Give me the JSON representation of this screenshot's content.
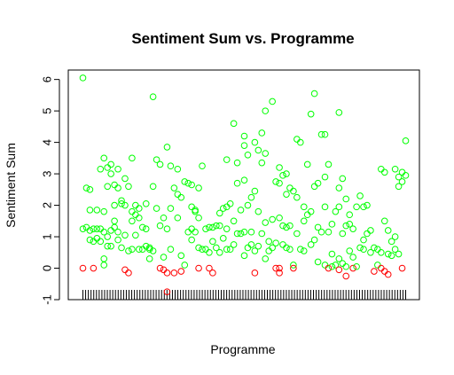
{
  "chart_data": {
    "type": "scatter",
    "title": "Sentiment Sum vs. Programme",
    "xlabel": "Programme",
    "ylabel": "Sentiment Sum",
    "ylim": [
      -1,
      6.3
    ],
    "yticks": [
      -1,
      0,
      1,
      2,
      3,
      4,
      5,
      6
    ],
    "x_tick_labels_visible": false,
    "grid": false,
    "legend": "none",
    "n_programmes": 120,
    "colors": {
      "positive": "#00ff00",
      "nonpositive": "#ff0000",
      "axis": "#000000"
    },
    "series": [
      {
        "color_rule": "green if y > 0, red if y <= 0",
        "points": [
          {
            "x": 1,
            "y": 6.05
          },
          {
            "x": 1,
            "y": 1.25
          },
          {
            "x": 1,
            "y": 0.0
          },
          {
            "x": 2,
            "y": 2.55
          },
          {
            "x": 2,
            "y": 1.3
          },
          {
            "x": 3,
            "y": 2.5
          },
          {
            "x": 3,
            "y": 1.85
          },
          {
            "x": 3,
            "y": 0.9
          },
          {
            "x": 3,
            "y": 1.2
          },
          {
            "x": 4,
            "y": 1.25
          },
          {
            "x": 4,
            "y": 0.85
          },
          {
            "x": 4,
            "y": 0.0
          },
          {
            "x": 5,
            "y": 1.85
          },
          {
            "x": 5,
            "y": 1.25
          },
          {
            "x": 5,
            "y": 0.95
          },
          {
            "x": 6,
            "y": 3.15
          },
          {
            "x": 6,
            "y": 1.25
          },
          {
            "x": 6,
            "y": 0.85
          },
          {
            "x": 7,
            "y": 3.5
          },
          {
            "x": 7,
            "y": 1.8
          },
          {
            "x": 7,
            "y": 1.15
          },
          {
            "x": 7,
            "y": 0.3
          },
          {
            "x": 7,
            "y": 0.1
          },
          {
            "x": 8,
            "y": 3.2
          },
          {
            "x": 8,
            "y": 2.6
          },
          {
            "x": 8,
            "y": 1.0
          },
          {
            "x": 8,
            "y": 0.7
          },
          {
            "x": 9,
            "y": 3.3
          },
          {
            "x": 9,
            "y": 3.0
          },
          {
            "x": 9,
            "y": 1.2
          },
          {
            "x": 9,
            "y": 0.7
          },
          {
            "x": 10,
            "y": 2.65
          },
          {
            "x": 10,
            "y": 2.0
          },
          {
            "x": 10,
            "y": 1.5
          },
          {
            "x": 10,
            "y": 1.3
          },
          {
            "x": 11,
            "y": 3.15
          },
          {
            "x": 11,
            "y": 2.55
          },
          {
            "x": 11,
            "y": 1.15
          },
          {
            "x": 11,
            "y": 0.9
          },
          {
            "x": 12,
            "y": 2.15
          },
          {
            "x": 12,
            "y": 2.05
          },
          {
            "x": 12,
            "y": 0.65
          },
          {
            "x": 13,
            "y": 2.85
          },
          {
            "x": 13,
            "y": 2.0
          },
          {
            "x": 13,
            "y": 1.05
          },
          {
            "x": 13,
            "y": -0.05
          },
          {
            "x": 14,
            "y": 2.6
          },
          {
            "x": 14,
            "y": 0.55
          },
          {
            "x": 14,
            "y": -0.15
          },
          {
            "x": 15,
            "y": 3.5
          },
          {
            "x": 15,
            "y": 1.8
          },
          {
            "x": 15,
            "y": 1.5
          },
          {
            "x": 15,
            "y": 0.6
          },
          {
            "x": 16,
            "y": 2.0
          },
          {
            "x": 16,
            "y": 1.7
          },
          {
            "x": 16,
            "y": 1.05
          },
          {
            "x": 17,
            "y": 1.9
          },
          {
            "x": 17,
            "y": 1.6
          },
          {
            "x": 17,
            "y": 0.6
          },
          {
            "x": 18,
            "y": 1.3
          },
          {
            "x": 18,
            "y": 0.6
          },
          {
            "x": 19,
            "y": 2.05
          },
          {
            "x": 19,
            "y": 1.25
          },
          {
            "x": 19,
            "y": 0.7
          },
          {
            "x": 20,
            "y": 0.65
          },
          {
            "x": 20,
            "y": 0.6
          },
          {
            "x": 20,
            "y": 0.3
          },
          {
            "x": 21,
            "y": 5.45
          },
          {
            "x": 21,
            "y": 2.6
          },
          {
            "x": 21,
            "y": 0.55
          },
          {
            "x": 22,
            "y": 3.45
          },
          {
            "x": 22,
            "y": 1.9
          },
          {
            "x": 23,
            "y": 3.3
          },
          {
            "x": 23,
            "y": 1.35
          },
          {
            "x": 23,
            "y": 0.0
          },
          {
            "x": 24,
            "y": 1.6
          },
          {
            "x": 24,
            "y": 0.35
          },
          {
            "x": 24,
            "y": -0.05
          },
          {
            "x": 25,
            "y": 3.85
          },
          {
            "x": 25,
            "y": 1.25
          },
          {
            "x": 25,
            "y": -0.15
          },
          {
            "x": 25,
            "y": -0.75
          },
          {
            "x": 26,
            "y": 3.25
          },
          {
            "x": 26,
            "y": 1.9
          },
          {
            "x": 26,
            "y": 0.6
          },
          {
            "x": 27,
            "y": 2.55
          },
          {
            "x": 27,
            "y": -0.15
          },
          {
            "x": 28,
            "y": 3.15
          },
          {
            "x": 28,
            "y": 2.35
          },
          {
            "x": 28,
            "y": 1.6
          },
          {
            "x": 29,
            "y": 2.25
          },
          {
            "x": 29,
            "y": 0.4
          },
          {
            "x": 29,
            "y": -0.1
          },
          {
            "x": 30,
            "y": 2.75
          },
          {
            "x": 30,
            "y": 0.1
          },
          {
            "x": 31,
            "y": 2.7
          },
          {
            "x": 31,
            "y": 1.15
          },
          {
            "x": 32,
            "y": 2.65
          },
          {
            "x": 32,
            "y": 1.95
          },
          {
            "x": 32,
            "y": 1.25
          },
          {
            "x": 32,
            "y": 0.9
          },
          {
            "x": 33,
            "y": 1.85
          },
          {
            "x": 33,
            "y": 1.8
          },
          {
            "x": 33,
            "y": 1.15
          },
          {
            "x": 34,
            "y": 2.55
          },
          {
            "x": 34,
            "y": 1.6
          },
          {
            "x": 34,
            "y": 0.65
          },
          {
            "x": 34,
            "y": 0.0
          },
          {
            "x": 35,
            "y": 3.25
          },
          {
            "x": 35,
            "y": 0.6
          },
          {
            "x": 36,
            "y": 1.25
          },
          {
            "x": 36,
            "y": 0.6
          },
          {
            "x": 37,
            "y": 1.3
          },
          {
            "x": 37,
            "y": 0.5
          },
          {
            "x": 37,
            "y": 0.0
          },
          {
            "x": 38,
            "y": 1.3
          },
          {
            "x": 38,
            "y": 0.85
          },
          {
            "x": 38,
            "y": -0.15
          },
          {
            "x": 39,
            "y": 1.35
          },
          {
            "x": 39,
            "y": 0.65
          },
          {
            "x": 40,
            "y": 1.75
          },
          {
            "x": 40,
            "y": 1.35
          },
          {
            "x": 40,
            "y": 0.5
          },
          {
            "x": 41,
            "y": 1.9
          },
          {
            "x": 41,
            "y": 0.95
          },
          {
            "x": 42,
            "y": 3.45
          },
          {
            "x": 42,
            "y": 1.95
          },
          {
            "x": 42,
            "y": 1.25
          },
          {
            "x": 42,
            "y": 0.6
          },
          {
            "x": 43,
            "y": 2.05
          },
          {
            "x": 43,
            "y": 0.6
          },
          {
            "x": 44,
            "y": 4.6
          },
          {
            "x": 44,
            "y": 1.5
          },
          {
            "x": 44,
            "y": 0.75
          },
          {
            "x": 45,
            "y": 3.35
          },
          {
            "x": 45,
            "y": 2.7
          },
          {
            "x": 45,
            "y": 1.1
          },
          {
            "x": 46,
            "y": 1.85
          },
          {
            "x": 46,
            "y": 1.1
          },
          {
            "x": 47,
            "y": 4.2
          },
          {
            "x": 47,
            "y": 3.9
          },
          {
            "x": 47,
            "y": 2.8
          },
          {
            "x": 47,
            "y": 1.15
          },
          {
            "x": 47,
            "y": 0.4
          },
          {
            "x": 48,
            "y": 3.6
          },
          {
            "x": 48,
            "y": 2.0
          },
          {
            "x": 48,
            "y": 0.65
          },
          {
            "x": 49,
            "y": 2.25
          },
          {
            "x": 49,
            "y": 1.15
          },
          {
            "x": 49,
            "y": 0.75
          },
          {
            "x": 50,
            "y": 4.0
          },
          {
            "x": 50,
            "y": 2.45
          },
          {
            "x": 50,
            "y": 0.55
          },
          {
            "x": 50,
            "y": -0.15
          },
          {
            "x": 51,
            "y": 3.75
          },
          {
            "x": 51,
            "y": 1.8
          },
          {
            "x": 51,
            "y": 0.7
          },
          {
            "x": 52,
            "y": 4.3
          },
          {
            "x": 52,
            "y": 3.35
          },
          {
            "x": 52,
            "y": 1.1
          },
          {
            "x": 53,
            "y": 5.0
          },
          {
            "x": 53,
            "y": 3.65
          },
          {
            "x": 53,
            "y": 1.45
          },
          {
            "x": 53,
            "y": 0.3
          },
          {
            "x": 54,
            "y": 0.85
          },
          {
            "x": 54,
            "y": 0.55
          },
          {
            "x": 55,
            "y": 5.3
          },
          {
            "x": 55,
            "y": 1.55
          },
          {
            "x": 55,
            "y": 0.65
          },
          {
            "x": 56,
            "y": 2.75
          },
          {
            "x": 56,
            "y": 0.8
          },
          {
            "x": 56,
            "y": 0.0
          },
          {
            "x": 57,
            "y": 3.2
          },
          {
            "x": 57,
            "y": 2.7
          },
          {
            "x": 57,
            "y": 1.6
          },
          {
            "x": 57,
            "y": 0.0
          },
          {
            "x": 57,
            "y": -0.15
          },
          {
            "x": 58,
            "y": 2.95
          },
          {
            "x": 58,
            "y": 1.35
          },
          {
            "x": 58,
            "y": 0.75
          },
          {
            "x": 59,
            "y": 3.0
          },
          {
            "x": 59,
            "y": 2.35
          },
          {
            "x": 59,
            "y": 1.3
          },
          {
            "x": 59,
            "y": 0.65
          },
          {
            "x": 60,
            "y": 2.55
          },
          {
            "x": 60,
            "y": 1.35
          },
          {
            "x": 60,
            "y": 0.6
          },
          {
            "x": 61,
            "y": 2.45
          },
          {
            "x": 61,
            "y": 0.1
          },
          {
            "x": 61,
            "y": 0.0
          },
          {
            "x": 62,
            "y": 4.1
          },
          {
            "x": 62,
            "y": 2.25
          },
          {
            "x": 62,
            "y": 1.1
          },
          {
            "x": 63,
            "y": 4.0
          },
          {
            "x": 63,
            "y": 0.6
          },
          {
            "x": 64,
            "y": 1.95
          },
          {
            "x": 64,
            "y": 1.5
          },
          {
            "x": 64,
            "y": 0.55
          },
          {
            "x": 65,
            "y": 3.3
          },
          {
            "x": 65,
            "y": 1.7
          },
          {
            "x": 66,
            "y": 4.9
          },
          {
            "x": 66,
            "y": 1.8
          },
          {
            "x": 66,
            "y": 0.75
          },
          {
            "x": 67,
            "y": 5.55
          },
          {
            "x": 67,
            "y": 2.6
          },
          {
            "x": 67,
            "y": 0.9
          },
          {
            "x": 68,
            "y": 2.7
          },
          {
            "x": 68,
            "y": 1.3
          },
          {
            "x": 68,
            "y": 0.2
          },
          {
            "x": 69,
            "y": 4.25
          },
          {
            "x": 69,
            "y": 1.15
          },
          {
            "x": 70,
            "y": 4.25
          },
          {
            "x": 70,
            "y": 2.9
          },
          {
            "x": 70,
            "y": 1.95
          },
          {
            "x": 70,
            "y": 0.1
          },
          {
            "x": 71,
            "y": 3.3
          },
          {
            "x": 71,
            "y": 1.15
          },
          {
            "x": 71,
            "y": 0.0
          },
          {
            "x": 72,
            "y": 1.4
          },
          {
            "x": 72,
            "y": 0.45
          },
          {
            "x": 72,
            "y": 0.05
          },
          {
            "x": 73,
            "y": 1.8
          },
          {
            "x": 73,
            "y": 0.1
          },
          {
            "x": 74,
            "y": 4.95
          },
          {
            "x": 74,
            "y": 2.55
          },
          {
            "x": 74,
            "y": 1.95
          },
          {
            "x": 74,
            "y": 0.3
          },
          {
            "x": 74,
            "y": -0.05
          },
          {
            "x": 75,
            "y": 2.85
          },
          {
            "x": 75,
            "y": 1.1
          },
          {
            "x": 75,
            "y": 0.15
          },
          {
            "x": 76,
            "y": 2.2
          },
          {
            "x": 76,
            "y": 1.35
          },
          {
            "x": 76,
            "y": 0.05
          },
          {
            "x": 76,
            "y": -0.25
          },
          {
            "x": 77,
            "y": 1.7
          },
          {
            "x": 77,
            "y": 1.4
          },
          {
            "x": 77,
            "y": 0.55
          },
          {
            "x": 78,
            "y": 1.25
          },
          {
            "x": 78,
            "y": 0.35
          },
          {
            "x": 78,
            "y": 0.0
          },
          {
            "x": 79,
            "y": 1.95
          },
          {
            "x": 79,
            "y": 0.05
          },
          {
            "x": 80,
            "y": 2.3
          },
          {
            "x": 80,
            "y": 0.65
          },
          {
            "x": 81,
            "y": 1.95
          },
          {
            "x": 81,
            "y": 0.9
          },
          {
            "x": 81,
            "y": 0.6
          },
          {
            "x": 82,
            "y": 2.0
          },
          {
            "x": 82,
            "y": 1.1
          },
          {
            "x": 83,
            "y": 1.2
          },
          {
            "x": 83,
            "y": 0.5
          },
          {
            "x": 84,
            "y": 0.65
          },
          {
            "x": 84,
            "y": -0.1
          },
          {
            "x": 85,
            "y": 0.6
          },
          {
            "x": 85,
            "y": 0.1
          },
          {
            "x": 86,
            "y": 3.15
          },
          {
            "x": 86,
            "y": 0.5
          },
          {
            "x": 86,
            "y": 0.0
          },
          {
            "x": 87,
            "y": 3.05
          },
          {
            "x": 87,
            "y": 1.5
          },
          {
            "x": 87,
            "y": -0.1
          },
          {
            "x": 88,
            "y": 1.2
          },
          {
            "x": 88,
            "y": 0.45
          },
          {
            "x": 88,
            "y": -0.2
          },
          {
            "x": 89,
            "y": 0.85
          },
          {
            "x": 89,
            "y": 0.4
          },
          {
            "x": 90,
            "y": 3.15
          },
          {
            "x": 90,
            "y": 1.0
          },
          {
            "x": 90,
            "y": 0.6
          },
          {
            "x": 91,
            "y": 2.9
          },
          {
            "x": 91,
            "y": 2.6
          },
          {
            "x": 91,
            "y": 0.45
          },
          {
            "x": 92,
            "y": 3.05
          },
          {
            "x": 92,
            "y": 2.75
          },
          {
            "x": 92,
            "y": 0.0
          },
          {
            "x": 93,
            "y": 4.05
          },
          {
            "x": 93,
            "y": 2.95
          }
        ]
      }
    ]
  }
}
